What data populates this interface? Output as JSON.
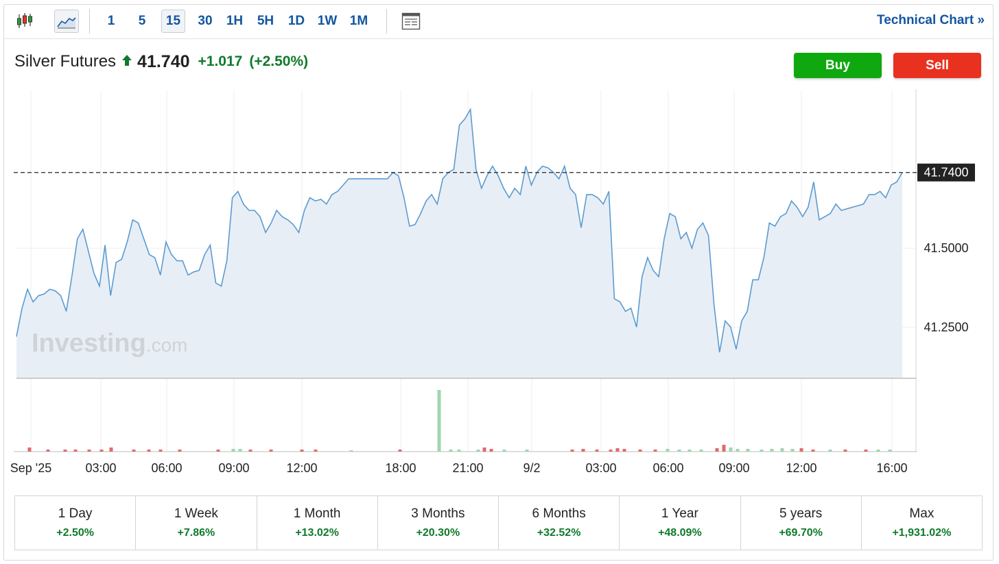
{
  "toolbar": {
    "candle_icon": "candlestick-chart-icon",
    "line_icon": "line-chart-icon",
    "intervals": [
      "1",
      "5",
      "15",
      "30",
      "1H",
      "5H",
      "1D",
      "1W",
      "1M"
    ],
    "active_interval": "15",
    "table_icon": "data-table-icon",
    "technical_chart_label": "Technical Chart »"
  },
  "quote": {
    "name": "Silver Futures",
    "direction_icon": "arrow-up-icon",
    "price": "41.740",
    "change": "+1.017",
    "change_pct": "(+2.50%)"
  },
  "actions": {
    "buy_label": "Buy",
    "sell_label": "Sell"
  },
  "watermark": {
    "brand": "Investing",
    "suffix": ".com"
  },
  "colors": {
    "up": "#0f7a2b",
    "buy": "#0fa80f",
    "sell": "#e8321f",
    "line": "#5b9bd0",
    "area": "#e8eef6",
    "vol_up": "#9fd6ae",
    "vol_down": "#e26a6a"
  },
  "chart_data": {
    "type": "area",
    "current_price_label": "41.7400",
    "y_ticks": [
      "41.5000",
      "41.2500"
    ],
    "x_ticks": [
      "Sep '25",
      "03:00",
      "06:00",
      "09:00",
      "12:00",
      "18:00",
      "21:00",
      "9/2",
      "03:00",
      "06:00",
      "09:00",
      "12:00",
      "16:00"
    ],
    "ylim": [
      41.09,
      42.0
    ],
    "price_series": [
      41.22,
      41.31,
      41.37,
      41.33,
      41.35,
      41.355,
      41.37,
      41.365,
      41.35,
      41.3,
      41.41,
      41.53,
      41.56,
      41.49,
      41.42,
      41.38,
      41.51,
      41.35,
      41.455,
      41.465,
      41.52,
      41.59,
      41.58,
      41.53,
      41.48,
      41.47,
      41.415,
      41.52,
      41.48,
      41.46,
      41.46,
      41.415,
      41.425,
      41.43,
      41.48,
      41.51,
      41.39,
      41.38,
      41.46,
      41.66,
      41.68,
      41.64,
      41.62,
      41.62,
      41.6,
      41.55,
      41.58,
      41.62,
      41.6,
      41.59,
      41.575,
      41.55,
      41.62,
      41.66,
      41.65,
      41.655,
      41.64,
      41.67,
      41.68,
      41.7,
      41.72,
      41.72,
      41.72,
      41.72,
      41.72,
      41.72,
      41.72,
      41.72,
      41.74,
      41.73,
      41.66,
      41.57,
      41.575,
      41.61,
      41.65,
      41.67,
      41.64,
      41.72,
      41.74,
      41.75,
      41.89,
      41.91,
      41.94,
      41.75,
      41.69,
      41.73,
      41.76,
      41.73,
      41.69,
      41.66,
      41.69,
      41.67,
      41.76,
      41.7,
      41.74,
      41.76,
      41.755,
      41.74,
      41.72,
      41.76,
      41.69,
      41.67,
      41.565,
      41.67,
      41.67,
      41.66,
      41.64,
      41.68,
      41.34,
      41.33,
      41.3,
      41.31,
      41.25,
      41.41,
      41.47,
      41.43,
      41.41,
      41.53,
      41.61,
      41.6,
      41.53,
      41.55,
      41.5,
      41.56,
      41.58,
      41.54,
      41.32,
      41.17,
      41.27,
      41.25,
      41.18,
      41.27,
      41.3,
      41.4,
      41.4,
      41.47,
      41.58,
      41.57,
      41.6,
      41.61,
      41.65,
      41.63,
      41.6,
      41.63,
      41.71,
      41.59,
      41.6,
      41.61,
      41.64,
      41.62,
      41.625,
      41.63,
      41.635,
      41.64,
      41.67,
      41.67,
      41.68,
      41.66,
      41.7,
      41.71,
      41.74
    ],
    "volume": [
      {
        "x": 43,
        "h": 6,
        "up": false
      },
      {
        "x": 70,
        "h": 3,
        "up": false
      },
      {
        "x": 95,
        "h": 3,
        "up": false
      },
      {
        "x": 110,
        "h": 3,
        "up": false
      },
      {
        "x": 130,
        "h": 3,
        "up": false
      },
      {
        "x": 148,
        "h": 3,
        "up": false
      },
      {
        "x": 162,
        "h": 6,
        "up": false
      },
      {
        "x": 195,
        "h": 3,
        "up": false
      },
      {
        "x": 217,
        "h": 3,
        "up": false
      },
      {
        "x": 234,
        "h": 3,
        "up": false
      },
      {
        "x": 262,
        "h": 3,
        "up": false
      },
      {
        "x": 318,
        "h": 3,
        "up": false
      },
      {
        "x": 340,
        "h": 4,
        "up": true
      },
      {
        "x": 350,
        "h": 4,
        "up": true
      },
      {
        "x": 365,
        "h": 3,
        "up": false
      },
      {
        "x": 395,
        "h": 3,
        "up": false
      },
      {
        "x": 440,
        "h": 3,
        "up": false
      },
      {
        "x": 460,
        "h": 3,
        "up": false
      },
      {
        "x": 512,
        "h": 2,
        "up": true
      },
      {
        "x": 583,
        "h": 3,
        "up": false
      },
      {
        "x": 640,
        "h": 90,
        "up": true
      },
      {
        "x": 657,
        "h": 3,
        "up": true
      },
      {
        "x": 669,
        "h": 3,
        "up": true
      },
      {
        "x": 697,
        "h": 3,
        "up": true
      },
      {
        "x": 706,
        "h": 6,
        "up": false
      },
      {
        "x": 716,
        "h": 4,
        "up": false
      },
      {
        "x": 735,
        "h": 3,
        "up": true
      },
      {
        "x": 768,
        "h": 3,
        "up": true
      },
      {
        "x": 834,
        "h": 3,
        "up": false
      },
      {
        "x": 850,
        "h": 4,
        "up": false
      },
      {
        "x": 870,
        "h": 3,
        "up": false
      },
      {
        "x": 890,
        "h": 3,
        "up": false
      },
      {
        "x": 900,
        "h": 5,
        "up": false
      },
      {
        "x": 910,
        "h": 4,
        "up": false
      },
      {
        "x": 933,
        "h": 3,
        "up": false
      },
      {
        "x": 955,
        "h": 3,
        "up": false
      },
      {
        "x": 973,
        "h": 4,
        "up": true
      },
      {
        "x": 990,
        "h": 3,
        "up": true
      },
      {
        "x": 1005,
        "h": 3,
        "up": true
      },
      {
        "x": 1022,
        "h": 3,
        "up": true
      },
      {
        "x": 1045,
        "h": 5,
        "up": false
      },
      {
        "x": 1055,
        "h": 10,
        "up": false
      },
      {
        "x": 1065,
        "h": 6,
        "up": true
      },
      {
        "x": 1075,
        "h": 4,
        "up": true
      },
      {
        "x": 1090,
        "h": 4,
        "up": true
      },
      {
        "x": 1110,
        "h": 3,
        "up": true
      },
      {
        "x": 1125,
        "h": 4,
        "up": true
      },
      {
        "x": 1140,
        "h": 5,
        "up": true
      },
      {
        "x": 1155,
        "h": 4,
        "up": true
      },
      {
        "x": 1168,
        "h": 5,
        "up": false
      },
      {
        "x": 1185,
        "h": 3,
        "up": false
      },
      {
        "x": 1210,
        "h": 3,
        "up": true
      },
      {
        "x": 1232,
        "h": 3,
        "up": false
      },
      {
        "x": 1262,
        "h": 3,
        "up": false
      },
      {
        "x": 1280,
        "h": 3,
        "up": true
      },
      {
        "x": 1297,
        "h": 3,
        "up": true
      }
    ]
  },
  "periods": [
    {
      "label": "1 Day",
      "value": "+2.50%"
    },
    {
      "label": "1 Week",
      "value": "+7.86%"
    },
    {
      "label": "1 Month",
      "value": "+13.02%"
    },
    {
      "label": "3 Months",
      "value": "+20.30%"
    },
    {
      "label": "6 Months",
      "value": "+32.52%"
    },
    {
      "label": "1 Year",
      "value": "+48.09%"
    },
    {
      "label": "5 years",
      "value": "+69.70%"
    },
    {
      "label": "Max",
      "value": "+1,931.02%"
    }
  ]
}
